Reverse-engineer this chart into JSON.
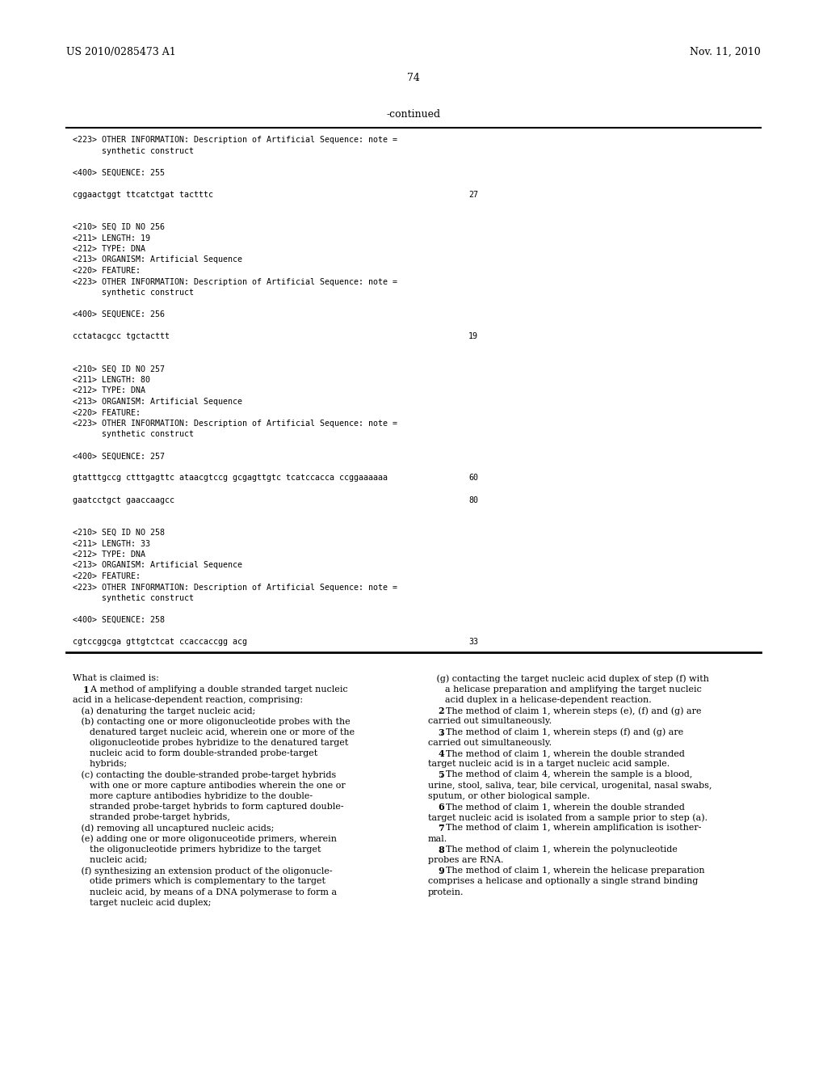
{
  "bg_color": "#ffffff",
  "header_left": "US 2010/0285473 A1",
  "header_right": "Nov. 11, 2010",
  "page_number": "74",
  "continued_label": "-continued",
  "mono_font_size": 7.2,
  "body_font_size": 8.0,
  "mono_lines": [
    {
      "text": "<223> OTHER INFORMATION: Description of Artificial Sequence: note =",
      "indent": false
    },
    {
      "text": "      synthetic construct",
      "indent": false
    },
    {
      "text": "",
      "indent": false
    },
    {
      "text": "<400> SEQUENCE: 255",
      "indent": false
    },
    {
      "text": "",
      "indent": false
    },
    {
      "text": "cggaactggt ttcatctgat tactttc",
      "num": "27"
    },
    {
      "text": "",
      "indent": false
    },
    {
      "text": "",
      "indent": false
    },
    {
      "text": "<210> SEQ ID NO 256",
      "indent": false
    },
    {
      "text": "<211> LENGTH: 19",
      "indent": false
    },
    {
      "text": "<212> TYPE: DNA",
      "indent": false
    },
    {
      "text": "<213> ORGANISM: Artificial Sequence",
      "indent": false
    },
    {
      "text": "<220> FEATURE:",
      "indent": false
    },
    {
      "text": "<223> OTHER INFORMATION: Description of Artificial Sequence: note =",
      "indent": false
    },
    {
      "text": "      synthetic construct",
      "indent": false
    },
    {
      "text": "",
      "indent": false
    },
    {
      "text": "<400> SEQUENCE: 256",
      "indent": false
    },
    {
      "text": "",
      "indent": false
    },
    {
      "text": "cctatacgcc tgctacttt",
      "num": "19"
    },
    {
      "text": "",
      "indent": false
    },
    {
      "text": "",
      "indent": false
    },
    {
      "text": "<210> SEQ ID NO 257",
      "indent": false
    },
    {
      "text": "<211> LENGTH: 80",
      "indent": false
    },
    {
      "text": "<212> TYPE: DNA",
      "indent": false
    },
    {
      "text": "<213> ORGANISM: Artificial Sequence",
      "indent": false
    },
    {
      "text": "<220> FEATURE:",
      "indent": false
    },
    {
      "text": "<223> OTHER INFORMATION: Description of Artificial Sequence: note =",
      "indent": false
    },
    {
      "text": "      synthetic construct",
      "indent": false
    },
    {
      "text": "",
      "indent": false
    },
    {
      "text": "<400> SEQUENCE: 257",
      "indent": false
    },
    {
      "text": "",
      "indent": false
    },
    {
      "text": "gtatttgccg ctttgagttc ataacgtccg gcgagttgtc tcatccacca ccggaaaaaa",
      "num": "60"
    },
    {
      "text": "",
      "indent": false
    },
    {
      "text": "gaatcctgct gaaccaagcc",
      "num": "80"
    },
    {
      "text": "",
      "indent": false
    },
    {
      "text": "",
      "indent": false
    },
    {
      "text": "<210> SEQ ID NO 258",
      "indent": false
    },
    {
      "text": "<211> LENGTH: 33",
      "indent": false
    },
    {
      "text": "<212> TYPE: DNA",
      "indent": false
    },
    {
      "text": "<213> ORGANISM: Artificial Sequence",
      "indent": false
    },
    {
      "text": "<220> FEATURE:",
      "indent": false
    },
    {
      "text": "<223> OTHER INFORMATION: Description of Artificial Sequence: note =",
      "indent": false
    },
    {
      "text": "      synthetic construct",
      "indent": false
    },
    {
      "text": "",
      "indent": false
    },
    {
      "text": "<400> SEQUENCE: 258",
      "indent": false
    },
    {
      "text": "",
      "indent": false
    },
    {
      "text": "cgtccggcga gttgtctcat ccaccaccgg acg",
      "num": "33"
    }
  ],
  "claims_left": [
    {
      "text": "What is claimed is:",
      "type": "normal"
    },
    {
      "text": "   \u00011. A method of amplifying a double stranded target nucleic",
      "type": "claim",
      "num": "1"
    },
    {
      "text": "acid in a helicase-dependent reaction, comprising:",
      "type": "normal"
    },
    {
      "text": "   (a) denaturing the target nucleic acid;",
      "type": "normal"
    },
    {
      "text": "   (b) contacting one or more oligonucleotide probes with the",
      "type": "normal"
    },
    {
      "text": "      denatured target nucleic acid, wherein one or more of the",
      "type": "normal"
    },
    {
      "text": "      oligonucleotide probes hybridize to the denatured target",
      "type": "normal"
    },
    {
      "text": "      nucleic acid to form double-stranded probe-target",
      "type": "normal"
    },
    {
      "text": "      hybrids;",
      "type": "normal"
    },
    {
      "text": "   (c) contacting the double-stranded probe-target hybrids",
      "type": "normal"
    },
    {
      "text": "      with one or more capture antibodies wherein the one or",
      "type": "normal"
    },
    {
      "text": "      more capture antibodies hybridize to the double-",
      "type": "normal"
    },
    {
      "text": "      stranded probe-target hybrids to form captured double-",
      "type": "normal"
    },
    {
      "text": "      stranded probe-target hybrids,",
      "type": "normal"
    },
    {
      "text": "   (d) removing all uncaptured nucleic acids;",
      "type": "normal"
    },
    {
      "text": "   (e) adding one or more oligonuceotide primers, wherein",
      "type": "normal"
    },
    {
      "text": "      the oligonucleotide primers hybridize to the target",
      "type": "normal"
    },
    {
      "text": "      nucleic acid;",
      "type": "normal"
    },
    {
      "text": "   (f) synthesizing an extension product of the oligonucle-",
      "type": "normal"
    },
    {
      "text": "      otide primers which is complementary to the target",
      "type": "normal"
    },
    {
      "text": "      nucleic acid, by means of a DNA polymerase to form a",
      "type": "normal"
    },
    {
      "text": "      target nucleic acid duplex;",
      "type": "normal"
    }
  ],
  "claims_right": [
    {
      "text": "   (g) contacting the target nucleic acid duplex of step (f) with",
      "type": "normal"
    },
    {
      "text": "      a helicase preparation and amplifying the target nucleic",
      "type": "normal"
    },
    {
      "text": "      acid duplex in a helicase-dependent reaction.",
      "type": "normal"
    },
    {
      "text": "   \u00012. The method of claim 1, wherein steps (e), (f) and (g) are",
      "type": "claim",
      "num": "2"
    },
    {
      "text": "carried out simultaneously.",
      "type": "normal"
    },
    {
      "text": "   \u00013. The method of claim 1, wherein steps (f) and (g) are",
      "type": "claim",
      "num": "3"
    },
    {
      "text": "carried out simultaneously.",
      "type": "normal"
    },
    {
      "text": "   \u00014. The method of claim 1, wherein the double stranded",
      "type": "claim",
      "num": "4"
    },
    {
      "text": "target nucleic acid is in a target nucleic acid sample.",
      "type": "normal"
    },
    {
      "text": "   \u00015. The method of claim 4, wherein the sample is a blood,",
      "type": "claim",
      "num": "5"
    },
    {
      "text": "urine, stool, saliva, tear, bile cervical, urogenital, nasal swabs,",
      "type": "normal"
    },
    {
      "text": "sputum, or other biological sample.",
      "type": "normal"
    },
    {
      "text": "   \u00016. The method of claim 1, wherein the double stranded",
      "type": "claim",
      "num": "6"
    },
    {
      "text": "target nucleic acid is isolated from a sample prior to step (a).",
      "type": "normal"
    },
    {
      "text": "   \u00017. The method of claim 1, wherein amplification is isother-",
      "type": "claim",
      "num": "7"
    },
    {
      "text": "mal.",
      "type": "normal"
    },
    {
      "text": "   \u00018. The method of claim 1, wherein the polynucleotide",
      "type": "claim",
      "num": "8"
    },
    {
      "text": "probes are RNA.",
      "type": "normal"
    },
    {
      "text": "   \u00019. The method of claim 1, wherein the helicase preparation",
      "type": "claim",
      "num": "9"
    },
    {
      "text": "comprises a helicase and optionally a single strand binding",
      "type": "normal"
    },
    {
      "text": "protein.",
      "type": "normal"
    }
  ]
}
